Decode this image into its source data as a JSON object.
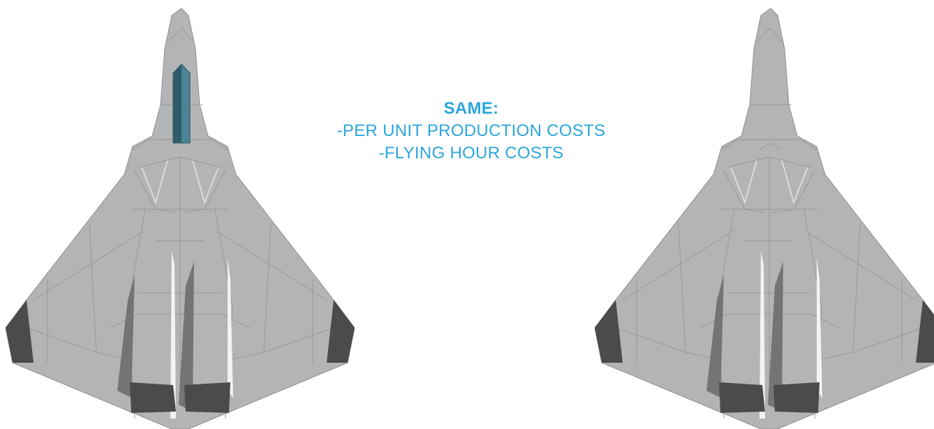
{
  "caption": {
    "heading": "SAME:",
    "lines": [
      "-PER UNIT PRODUCTION COSTS",
      "-FLYING HOUR COSTS"
    ]
  },
  "colors": {
    "accent_text": "#2ba6dd",
    "airframe": "#b3b4b6",
    "panel_lines": "#8d8e90",
    "dark_edges": "#4a4b4d",
    "canopy": "#3a6f80",
    "background": "#ffffff"
  },
  "aircraft": [
    {
      "id": "left",
      "has_canopy": true
    },
    {
      "id": "right",
      "has_canopy": false
    }
  ]
}
